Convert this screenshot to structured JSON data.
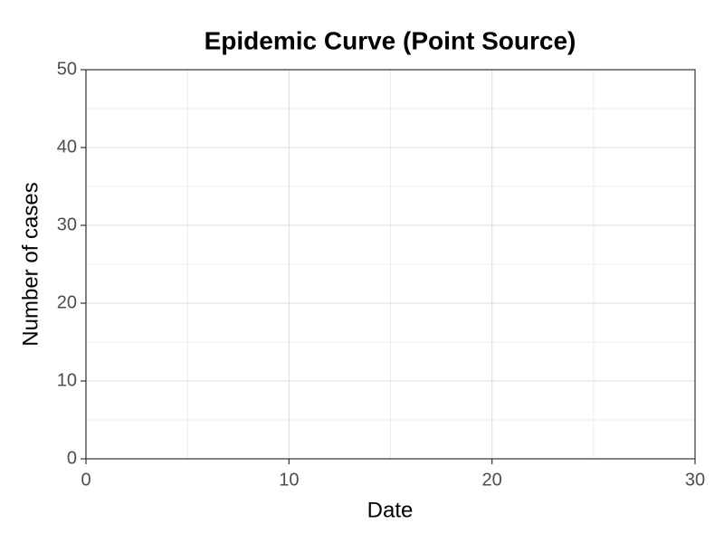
{
  "chart_data": {
    "type": "bar",
    "title": "Epidemic Curve (Point Source)",
    "xlabel": "Date",
    "ylabel": "Number of cases",
    "xlim": [
      0,
      30
    ],
    "ylim": [
      0,
      50
    ],
    "xticks": [
      0,
      10,
      20,
      30
    ],
    "yticks": [
      0,
      10,
      20,
      30,
      40,
      50
    ],
    "xminorticks": [
      5,
      15,
      25
    ],
    "yminorticks": [
      5,
      15,
      25,
      35,
      45
    ],
    "grid": true
  }
}
